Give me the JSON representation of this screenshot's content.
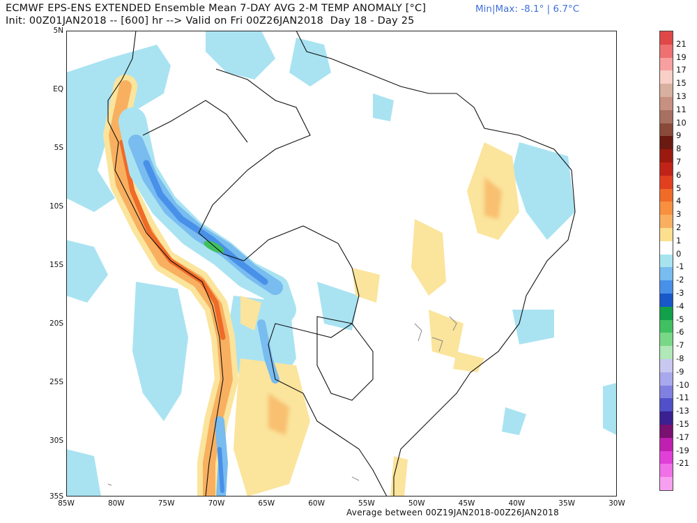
{
  "header": {
    "title": "ECMWF EPS-ENS EXTENDED Ensemble Mean 7-DAY AVG 2-M TEMP ANOMALY [°C]",
    "min_max": "Min|Max: -8.1° | 6.7°C",
    "init_line": "Init: 00Z01JAN2018 -- [600] hr --> Valid on Fri 00Z26JAN2018  Day 18 - Day 25"
  },
  "footer": {
    "average_text": "Average between 00Z19JAN2018-00Z26JAN2018"
  },
  "axes": {
    "lat_labels": [
      "5N",
      "EQ",
      "5S",
      "10S",
      "15S",
      "20S",
      "25S",
      "30S",
      "35S"
    ],
    "lon_labels": [
      "85W",
      "80W",
      "75W",
      "70W",
      "65W",
      "60W",
      "55W",
      "50W",
      "45W",
      "40W",
      "35W",
      "30W"
    ]
  },
  "colorbar": {
    "labels": [
      "21",
      "19",
      "17",
      "15",
      "13",
      "11",
      "10",
      "9",
      "8",
      "7",
      "6",
      "5",
      "4",
      "3",
      "2",
      "1",
      "0",
      "-1",
      "-2",
      "-3",
      "-4",
      "-5",
      "-6",
      "-7",
      "-8",
      "-9",
      "-10",
      "-11",
      "-13",
      "-15",
      "-17",
      "-19",
      "-21"
    ],
    "colors": [
      "#e04848",
      "#ee7070",
      "#f8a0a0",
      "#f8d0c8",
      "#d8b0a0",
      "#c89080",
      "#a87060",
      "#8a4a3a",
      "#6a1a10",
      "#9a1a10",
      "#c02418",
      "#e04020",
      "#f06a28",
      "#f89040",
      "#f8b060",
      "#fce090",
      "#ffffff",
      "#a8e4f0",
      "#78bcf0",
      "#4890e8",
      "#1858c8",
      "#12a04a",
      "#40c060",
      "#78d888",
      "#b0e8b8",
      "#c8c8f0",
      "#a8a8ec",
      "#8080e0",
      "#5050c8",
      "#3a2090",
      "#7a1070",
      "#c020b0",
      "#e040d8",
      "#f070e8",
      "#f8a0f0"
    ]
  }
}
